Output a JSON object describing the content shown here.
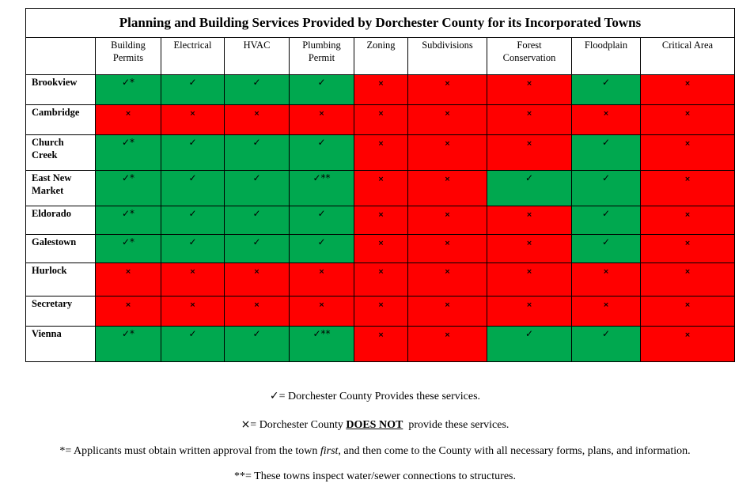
{
  "title": "Planning and Building Services Provided by Dorchester County for its Incorporated Towns",
  "columns": [
    {
      "line1": "Building",
      "line2": "Permits"
    },
    {
      "line1": "Electrical",
      "line2": ""
    },
    {
      "line1": "HVAC",
      "line2": ""
    },
    {
      "line1": "Plumbing",
      "line2": "Permit"
    },
    {
      "line1": "Zoning",
      "line2": ""
    },
    {
      "line1": "Subdivisions",
      "line2": ""
    },
    {
      "line1": "Forest",
      "line2": "Conservation"
    },
    {
      "line1": "Floodplain",
      "line2": ""
    },
    {
      "line1": "Critical Area",
      "line2": ""
    }
  ],
  "rows": [
    {
      "town_line1": "Brookview",
      "town_line2": "",
      "cells": [
        "✓*",
        "✓",
        "✓",
        "✓",
        "×",
        "×",
        "×",
        "✓",
        "×"
      ]
    },
    {
      "town_line1": "Cambridge",
      "town_line2": "",
      "cells": [
        "×",
        "×",
        "×",
        "×",
        "×",
        "×",
        "×",
        "×",
        "×"
      ]
    },
    {
      "town_line1": "Church",
      "town_line2": "Creek",
      "cells": [
        "✓*",
        "✓",
        "✓",
        "✓",
        "×",
        "×",
        "×",
        "✓",
        "×"
      ]
    },
    {
      "town_line1": "East New",
      "town_line2": "Market",
      "cells": [
        "✓*",
        "✓",
        "✓",
        "✓**",
        "×",
        "×",
        "✓",
        "✓",
        "×"
      ]
    },
    {
      "town_line1": "Eldorado",
      "town_line2": "",
      "cells": [
        "✓*",
        "✓",
        "✓",
        "✓",
        "×",
        "×",
        "×",
        "✓",
        "×"
      ]
    },
    {
      "town_line1": "Galestown",
      "town_line2": "",
      "cells": [
        "✓*",
        "✓",
        "✓",
        "✓",
        "×",
        "×",
        "×",
        "✓",
        "×"
      ]
    },
    {
      "town_line1": "Hurlock",
      "town_line2": "",
      "cells": [
        "×",
        "×",
        "×",
        "×",
        "×",
        "×",
        "×",
        "×",
        "×"
      ]
    },
    {
      "town_line1": "Secretary",
      "town_line2": "",
      "cells": [
        "×",
        "×",
        "×",
        "×",
        "×",
        "×",
        "×",
        "×",
        "×"
      ]
    },
    {
      "town_line1": "Vienna",
      "town_line2": "",
      "cells": [
        "✓*",
        "✓",
        "✓",
        "✓**",
        "×",
        "×",
        "✓",
        "✓",
        "×"
      ]
    }
  ],
  "colors": {
    "provided": "#00a84f",
    "not_provided": "#ff0000"
  },
  "legend": {
    "check_symbol": "✓",
    "check_text": "= Dorchester County Provides these services.",
    "x_symbol": "×",
    "x_text_before": "= Dorchester County ",
    "x_text_bold": "DOES NOT",
    "x_text_after": "  provide these services.",
    "star_before": "*= Applicants must obtain written approval from the town ",
    "star_italic": "first",
    "star_after": ", and then come to the County with all necessary forms, plans, and information.",
    "double_star": "**= These towns inspect water/sewer connections to structures."
  }
}
